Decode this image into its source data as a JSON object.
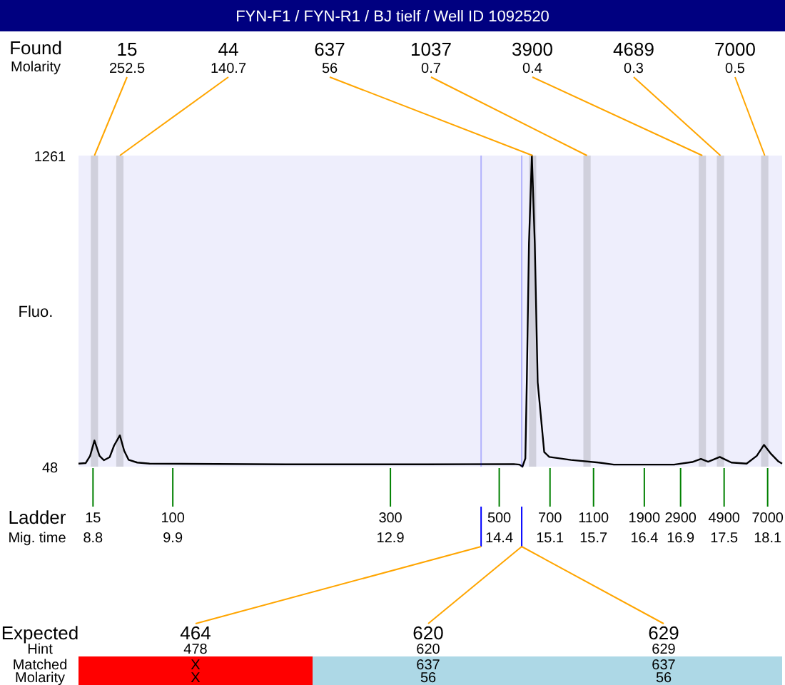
{
  "chart_data": {
    "type": "line",
    "title": "FYN-F1 / FYN-R1 / BJ tielf / Well ID 1092520",
    "ylabel": "Fluo.",
    "xlabel": "Mig. time",
    "xlim": [
      8.6,
      18.3
    ],
    "xticks": [
      8.8,
      9.9,
      12.9,
      14.4,
      15.1,
      15.7,
      16.4,
      16.9,
      17.5,
      18.1
    ],
    "ylim": [
      48,
      1261
    ],
    "yticks": [
      48,
      1261
    ],
    "grid": false,
    "series": [
      {
        "color": "#000000",
        "x": [
          8.6,
          8.7,
          8.76,
          8.82,
          8.89,
          8.95,
          9.03,
          9.09,
          9.17,
          9.23,
          9.29,
          9.41,
          9.58,
          11.45,
          13.42,
          14.6,
          14.68,
          14.72,
          14.76,
          14.78,
          14.81,
          14.85,
          14.89,
          14.93,
          15.02,
          15.09,
          15.39,
          15.77,
          15.98,
          16.81,
          17.06,
          17.18,
          17.28,
          17.44,
          17.6,
          17.81,
          17.95,
          18.05,
          18.14,
          18.25,
          18.3
        ],
        "values": [
          60,
          62,
          90,
          150,
          90,
          73,
          85,
          130,
          170,
          110,
          75,
          64,
          60,
          57,
          57,
          58,
          56,
          48,
          80,
          377,
          918,
          1261,
          918,
          377,
          105,
          86,
          74,
          64,
          56,
          56,
          66,
          78,
          67,
          86,
          64,
          60,
          90,
          133,
          100,
          68,
          60
        ]
      }
    ],
    "bands": [
      {
        "axis": "x",
        "from": 8.77,
        "to": 8.87,
        "label": "15",
        "color": "#d0d0dc"
      },
      {
        "axis": "x",
        "from": 9.12,
        "to": 9.22,
        "label": "44",
        "color": "#d0d0dc"
      },
      {
        "axis": "x",
        "from": 14.81,
        "to": 14.91,
        "label": "637",
        "color": "#d0d0dc"
      },
      {
        "axis": "x",
        "from": 15.56,
        "to": 15.66,
        "label": "1037",
        "color": "#d0d0dc"
      },
      {
        "axis": "x",
        "from": 17.15,
        "to": 17.25,
        "label": "3900",
        "color": "#d0d0dc"
      },
      {
        "axis": "x",
        "from": 17.4,
        "to": 17.5,
        "label": "4689",
        "color": "#d0d0dc"
      },
      {
        "axis": "x",
        "from": 18.01,
        "to": 18.11,
        "label": "7000",
        "color": "#d0d0dc"
      }
    ],
    "ref_lines": [
      {
        "axis": "x",
        "value": 14.15,
        "color": "#0000ff"
      },
      {
        "axis": "x",
        "value": 14.71,
        "color": "#0000ff"
      }
    ],
    "annotations": [
      "Found",
      "Molarity",
      {
        "text": "252.5",
        "x": 8.82,
        "y": 1261
      },
      {
        "text": "140.7",
        "x": 9.17,
        "y": 1261
      },
      {
        "text": "56",
        "x": 14.86,
        "y": 1261
      },
      {
        "text": "0.7",
        "x": 15.61,
        "y": 1261
      },
      {
        "text": "0.4",
        "x": 17.2,
        "y": 1261
      },
      {
        "text": "0.3",
        "x": 17.45,
        "y": 1261
      },
      {
        "text": "0.5",
        "x": 18.06,
        "y": 1261
      },
      "Ladder",
      "15",
      "100",
      "300",
      "500",
      "700",
      "1100",
      "1900",
      "2900",
      "4900",
      "7000",
      "Expected",
      "Hint",
      "Matched",
      "Molarity",
      "464",
      "478",
      "X",
      "X",
      "620",
      "620",
      "637",
      "56",
      "629",
      "629",
      "637",
      "56"
    ]
  }
}
